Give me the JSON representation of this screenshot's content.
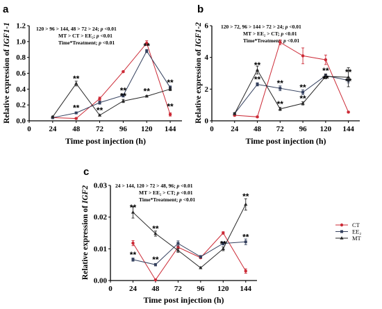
{
  "colors": {
    "CT": "#cc2a36",
    "EE2": "#34405e",
    "MT": "#262626",
    "axis": "#000000"
  },
  "chart_data": [
    {
      "panel": "a",
      "type": "line",
      "x": [
        24,
        48,
        72,
        96,
        120,
        144
      ],
      "xticks": [
        0,
        24,
        48,
        72,
        96,
        120,
        144
      ],
      "xlim": [
        0,
        156
      ],
      "ylim": [
        0,
        1.2
      ],
      "yticks": [
        "0.0",
        "0.2",
        "0.4",
        "0.6",
        "0.8",
        "1.0",
        "1.2"
      ],
      "xlabel": "Time post injection (h)",
      "ylabel": "Relative expression of IGF1-1",
      "ylabel_parts": [
        "Relative expression of ",
        "IGF1-1"
      ],
      "annotations": [
        "120 > 96 > 144, 48 > 72 > 24; p <0.01",
        "MT > CT > EE₂; p <0.01",
        "Time*Treatment; p <0.01"
      ],
      "series": [
        {
          "name": "CT",
          "values": [
            0.04,
            0.03,
            0.28,
            0.62,
            0.98,
            0.08
          ],
          "err": [
            0.01,
            0.01,
            0.02,
            0.01,
            0.03,
            0.02
          ]
        },
        {
          "name": "EE₂",
          "values": [
            0.04,
            0.1,
            0.23,
            0.32,
            0.88,
            0.42
          ],
          "err": [
            0.01,
            0.01,
            0.02,
            0.02,
            0.02,
            0.02
          ]
        },
        {
          "name": "MT",
          "values": [
            0.05,
            0.47,
            0.07,
            0.25,
            0.31,
            0.4
          ],
          "err": [
            0.01,
            0.03,
            0.01,
            0.02,
            0.01,
            0.02
          ]
        }
      ],
      "sig": [
        {
          "x": 48,
          "y": 0.47,
          "label": "**"
        },
        {
          "x": 48,
          "y": 0.1,
          "label": "**"
        },
        {
          "x": 72,
          "y": 0.07,
          "label": "**"
        },
        {
          "x": 96,
          "y": 0.32,
          "label": "**"
        },
        {
          "x": 96,
          "y": 0.25,
          "label": "**"
        },
        {
          "x": 120,
          "y": 0.88,
          "label": "**"
        },
        {
          "x": 120,
          "y": 0.31,
          "label": "**"
        },
        {
          "x": 144,
          "y": 0.42,
          "label": "**"
        },
        {
          "x": 144,
          "y": 0.12,
          "label": "**"
        }
      ]
    },
    {
      "panel": "b",
      "type": "line",
      "x": [
        24,
        48,
        72,
        96,
        120,
        144
      ],
      "xticks": [
        0,
        24,
        48,
        72,
        96,
        120,
        144
      ],
      "xlim": [
        0,
        156
      ],
      "ylim": [
        0,
        6
      ],
      "yticks": [
        "0",
        "2",
        "4",
        "6"
      ],
      "xlabel": "Time post injection (h)",
      "ylabel": "Relative expression of IGF1-2",
      "ylabel_parts": [
        "Relative expression of ",
        "IGF1-2"
      ],
      "annotations": [
        "120 > 72, 96 > 144 > 72 > 24; p <0.01",
        "MT > EE₂ > CT; p <0.01",
        "Time*Treatment; p <0.01"
      ],
      "series": [
        {
          "name": "CT",
          "values": [
            0.35,
            0.25,
            4.95,
            4.1,
            3.85,
            0.55
          ],
          "err": [
            0.05,
            0.05,
            0.15,
            0.5,
            0.3,
            0.05
          ]
        },
        {
          "name": "EE₂",
          "values": [
            0.45,
            2.3,
            2.05,
            1.8,
            2.85,
            2.55
          ],
          "err": [
            0.05,
            0.1,
            0.15,
            0.15,
            0.1,
            0.15
          ]
        },
        {
          "name": "MT",
          "values": [
            0.45,
            3.2,
            0.75,
            1.1,
            2.8,
            2.75
          ],
          "err": [
            0.05,
            0.25,
            0.1,
            0.1,
            0.15,
            0.6
          ]
        }
      ],
      "sig": [
        {
          "x": 48,
          "y": 3.2,
          "label": "**"
        },
        {
          "x": 48,
          "y": 2.3,
          "label": "**"
        },
        {
          "x": 72,
          "y": 2.05,
          "label": "**"
        },
        {
          "x": 72,
          "y": 0.75,
          "label": "**"
        },
        {
          "x": 96,
          "y": 1.8,
          "label": "**"
        },
        {
          "x": 96,
          "y": 1.1,
          "label": "**"
        },
        {
          "x": 120,
          "y": 2.85,
          "label": "**"
        },
        {
          "x": 120,
          "y": 2.35,
          "label": "**"
        },
        {
          "x": 144,
          "y": 2.75,
          "label": "**"
        },
        {
          "x": 144,
          "y": 2.2,
          "label": "**"
        }
      ]
    },
    {
      "panel": "c",
      "type": "line",
      "x": [
        24,
        48,
        72,
        96,
        120,
        144
      ],
      "xticks": [
        0,
        24,
        48,
        72,
        96,
        120,
        144
      ],
      "xlim": [
        0,
        156
      ],
      "ylim": [
        0,
        0.03
      ],
      "yticks": [
        "0.00",
        "0.01",
        "0.02",
        "0.03"
      ],
      "xlabel": "Time post injection (h)",
      "ylabel": "Relative expression of IGF2",
      "ylabel_parts": [
        "Relative expression of ",
        "IGF2"
      ],
      "annotations": [
        "24 > 144, 120 > 72 > 48, 96; p <0.01",
        "MT > EE₂ > CT; p <0.01",
        "Time*Treatment; p <0.01"
      ],
      "legend": {
        "placement": "right",
        "entries": [
          "CT",
          "EE₂",
          "MT"
        ]
      },
      "series": [
        {
          "name": "CT",
          "values": [
            0.0118,
            0.0002,
            0.0105,
            0.0072,
            0.015,
            0.003
          ],
          "err": [
            0.0008,
            0.0002,
            0.0005,
            0.0003,
            0.0004,
            0.0007
          ]
        },
        {
          "name": "EE₂",
          "values": [
            0.0066,
            0.005,
            0.0117,
            0.0075,
            0.0117,
            0.0122
          ],
          "err": [
            0.0005,
            0.0004,
            0.0008,
            0.0004,
            0.0005,
            0.0009
          ]
        },
        {
          "name": "MT",
          "values": [
            0.0215,
            0.0148,
            0.0095,
            0.004,
            0.01,
            0.024
          ],
          "err": [
            0.0018,
            0.0008,
            0.0006,
            0.0003,
            0.0006,
            0.0018
          ]
        }
      ],
      "sig": [
        {
          "x": 24,
          "y": 0.0215,
          "label": "**"
        },
        {
          "x": 24,
          "y": 0.0066,
          "label": "**"
        },
        {
          "x": 48,
          "y": 0.0148,
          "label": "**"
        },
        {
          "x": 48,
          "y": 0.005,
          "label": "**"
        },
        {
          "x": 120,
          "y": 0.01,
          "label": "**"
        },
        {
          "x": 144,
          "y": 0.025,
          "label": "**"
        },
        {
          "x": 144,
          "y": 0.0122,
          "label": "**"
        }
      ]
    }
  ]
}
